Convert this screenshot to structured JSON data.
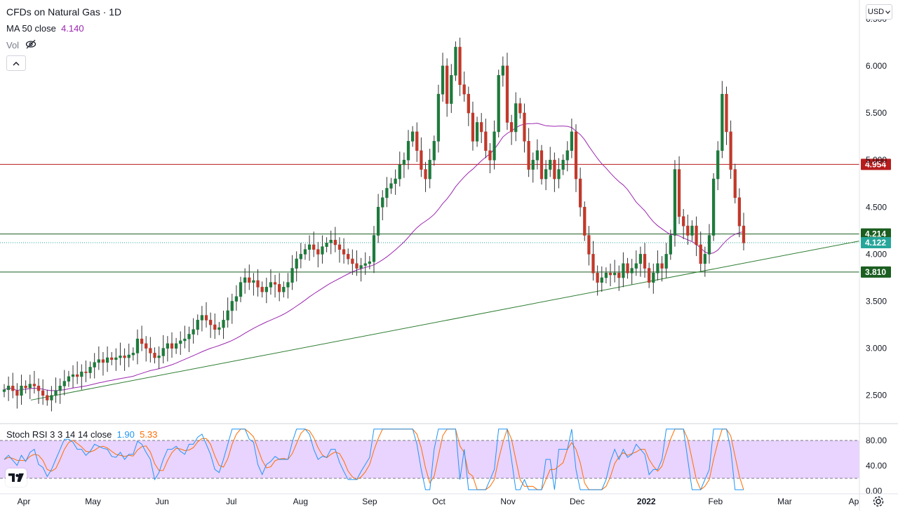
{
  "legend": {
    "symbol": "CFDs on Natural Gas · 1D",
    "ma_label": "MA 50 close",
    "ma_value": "4.140",
    "vol_label": "Vol",
    "rsi_label": "Stoch RSI 3 3 14 14 close",
    "rsi_k_value": "1.90",
    "rsi_d_value": "5.33"
  },
  "currency_button": "USD",
  "colors": {
    "up": "#26a69a",
    "up_fill": "#1e7a3c",
    "down": "#c0392b",
    "ma": "#9c27b0",
    "resistance": "#b71c1c",
    "support": "#1b5e20",
    "trend": "#2e7d32",
    "rsi_band": "#e1c4ff",
    "rsi_k": "#2196f3",
    "rsi_d": "#ff6d00"
  },
  "icons": {
    "hide_volume": "eye-off-icon",
    "collapse": "chevron-up-icon",
    "logo": "tradingview-logo",
    "settings": "gear-icon",
    "currency_menu": "chevron-down-icon"
  },
  "chart_data": {
    "type": "candlestick",
    "title": "CFDs on Natural Gas · 1D",
    "price_axis": {
      "ticks": [
        "6.500",
        "6.000",
        "5.500",
        "5.000",
        "4.500",
        "4.000",
        "3.500",
        "3.000",
        "2.500"
      ],
      "ylim": [
        2.2,
        6.7
      ]
    },
    "time_axis": {
      "ticks": [
        "Apr",
        "May",
        "Jun",
        "Jul",
        "Aug",
        "Sep",
        "Oct",
        "Nov",
        "Dec",
        "2022",
        "Feb",
        "Mar",
        "Ap"
      ]
    },
    "price_series": [
      2.56,
      2.6,
      2.55,
      2.5,
      2.6,
      2.58,
      2.62,
      2.6,
      2.55,
      2.5,
      2.45,
      2.5,
      2.55,
      2.6,
      2.65,
      2.7,
      2.72,
      2.7,
      2.75,
      2.74,
      2.8,
      2.85,
      2.88,
      2.85,
      2.9,
      2.88,
      2.9,
      2.92,
      2.9,
      2.93,
      2.95,
      3.1,
      3.05,
      3.0,
      2.95,
      2.9,
      2.92,
      3.0,
      3.05,
      3.0,
      3.05,
      3.08,
      3.1,
      3.15,
      3.2,
      3.3,
      3.35,
      3.3,
      3.25,
      3.2,
      3.22,
      3.3,
      3.4,
      3.5,
      3.55,
      3.7,
      3.75,
      3.7,
      3.72,
      3.65,
      3.6,
      3.65,
      3.7,
      3.68,
      3.6,
      3.65,
      3.7,
      3.85,
      3.95,
      4.0,
      4.05,
      4.1,
      4.05,
      4.0,
      4.08,
      4.12,
      4.15,
      4.1,
      4.05,
      4.0,
      3.95,
      3.9,
      3.85,
      3.88,
      3.9,
      3.92,
      4.2,
      4.5,
      4.6,
      4.7,
      4.75,
      4.8,
      4.95,
      5.0,
      5.2,
      5.3,
      5.1,
      4.9,
      4.8,
      5.0,
      5.2,
      5.7,
      6.0,
      5.6,
      5.9,
      6.2,
      5.8,
      5.7,
      5.5,
      5.2,
      5.4,
      5.3,
      5.1,
      5.0,
      5.3,
      5.9,
      6.0,
      5.4,
      5.3,
      5.6,
      5.5,
      5.2,
      4.9,
      5.0,
      5.1,
      4.8,
      4.9,
      5.0,
      4.8,
      4.9,
      5.0,
      5.1,
      5.3,
      4.8,
      4.5,
      4.2,
      4.0,
      3.8,
      3.7,
      3.75,
      3.8,
      3.78,
      3.8,
      3.75,
      3.9,
      3.8,
      3.85,
      3.9,
      4.0,
      3.85,
      3.7,
      3.8,
      3.9,
      3.85,
      4.0,
      4.2,
      4.9,
      4.4,
      4.3,
      4.2,
      4.3,
      4.1,
      3.9,
      4.0,
      4.2,
      4.8,
      5.1,
      5.7,
      5.3,
      4.9,
      4.6,
      4.3,
      4.12
    ],
    "ma50": {
      "name": "MA 50 close",
      "last": 4.14
    },
    "horizontal_levels": [
      {
        "value": 4.954,
        "label": "4.954",
        "color": "#b71c1c"
      },
      {
        "value": 4.214,
        "label": "4.214",
        "color": "#1b5e20"
      },
      {
        "value": 4.122,
        "label": "4.122",
        "color": "#26a69a",
        "style": "dotted",
        "note": "last price"
      },
      {
        "value": 3.81,
        "label": "3.810",
        "color": "#1b5e20"
      }
    ],
    "trendline": {
      "from": {
        "date": "Apr",
        "price": 2.45
      },
      "to": {
        "date": "Ap",
        "price": 4.14
      }
    },
    "stoch_rsi": {
      "label": "Stoch RSI 3 3 14 14 close",
      "k": 1.9,
      "d": 5.33,
      "ylim": [
        0,
        100
      ],
      "ticks": [
        "80.00",
        "40.00",
        "0.00"
      ],
      "band": [
        20,
        80
      ]
    }
  }
}
